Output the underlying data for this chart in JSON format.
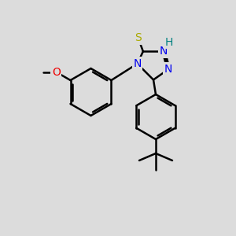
{
  "bg_color": "#dcdcdc",
  "line_color": "#000000",
  "bond_width": 1.8,
  "atom_colors": {
    "S": "#aaaa00",
    "N": "#0000ee",
    "O": "#ee0000",
    "H": "#008080",
    "C": "#000000"
  },
  "font_size": 10
}
